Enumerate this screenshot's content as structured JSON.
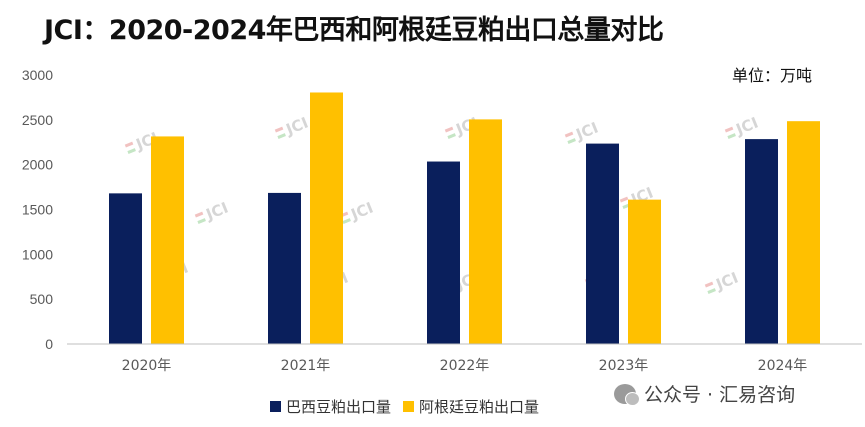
{
  "title": "JCI：2020-2024年巴西和阿根廷豆粕出口总量对比",
  "unit_label": "单位：万吨",
  "watermark": "JCI",
  "footer_text": "公众号 · 汇易咨询",
  "colors": {
    "brazil": "#0a1f5c",
    "argentina": "#ffc000",
    "axis": "#bfbfbf",
    "tick_text": "#595959"
  },
  "chart_data": {
    "type": "bar",
    "categories": [
      "2020年",
      "2021年",
      "2022年",
      "2023年",
      "2024年"
    ],
    "series": [
      {
        "name": "巴西豆粕出口量",
        "values": [
          1680,
          1685,
          2035,
          2235,
          2285
        ]
      },
      {
        "name": "阿根廷豆粕出口量",
        "values": [
          2315,
          2805,
          2505,
          1610,
          2485
        ]
      }
    ],
    "yticks": [
      0,
      500,
      1000,
      1500,
      2000,
      2500,
      3000
    ],
    "ylim": [
      0,
      3000
    ],
    "legend_position": "bottom",
    "grid": false
  }
}
